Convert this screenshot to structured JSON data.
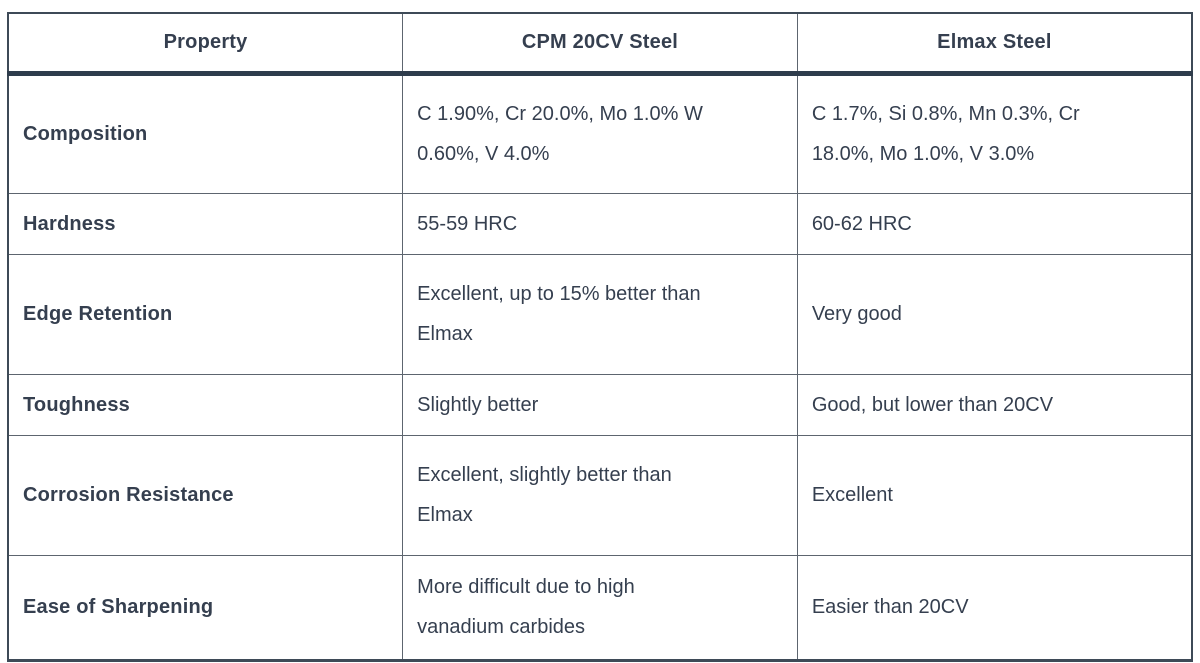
{
  "colors": {
    "background": "#ffffff",
    "text": "#353f4f",
    "border_outer": "#3e4a57",
    "border_inner": "#5d656f",
    "header_separator": "#2e3c4c"
  },
  "table": {
    "columns": [
      "Property",
      "CPM 20CV Steel",
      "Elmax Steel"
    ],
    "rows": [
      {
        "property": "Composition",
        "cpm": "C 1.90%, Cr 20.0%, Mo 1.0% W\n0.60%, V 4.0%",
        "elmax": "C 1.7%, Si 0.8%, Mn 0.3%, Cr\n18.0%, Mo 1.0%, V 3.0%"
      },
      {
        "property": "Hardness",
        "cpm": "55-59 HRC",
        "elmax": "60-62 HRC"
      },
      {
        "property": "Edge Retention",
        "cpm": "Excellent, up to 15% better than\nElmax",
        "elmax": "Very good"
      },
      {
        "property": "Toughness",
        "cpm": "Slightly better",
        "elmax": "Good, but lower than 20CV"
      },
      {
        "property": "Corrosion Resistance",
        "cpm": "Excellent, slightly better than\nElmax",
        "elmax": "Excellent"
      },
      {
        "property": "Ease of Sharpening",
        "cpm": "More difficult due to high\nvanadium carbides",
        "elmax": "Easier than 20CV"
      }
    ]
  }
}
